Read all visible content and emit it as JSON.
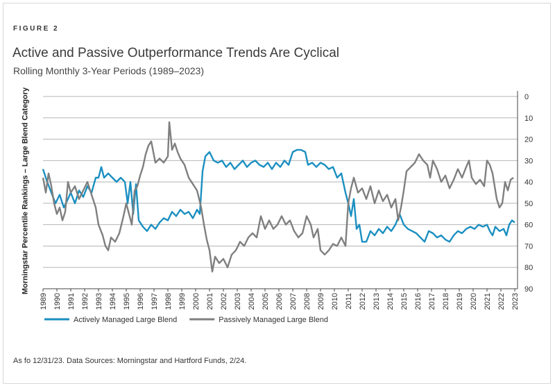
{
  "figure_label": "FIGURE 2",
  "footnote": "As fo 12/31/23. Data Sources: Morningstar and Hartford Funds, 2/24.",
  "credit": "",
  "colors": {
    "active": "#1a8fc0",
    "passive": "#7f7f7f",
    "grid": "#b5b5b5"
  },
  "chart_data": {
    "type": "line",
    "title": "Active and Passive Outperformance Trends Are Cyclical",
    "subtitle": "Rolling Monthly 3-Year Periods (1989–2023)",
    "ylabel": "Morningstar Percentile Rankings – Large Blend Category",
    "xlabel": "",
    "ylim": [
      0,
      90
    ],
    "y_inverted": true,
    "y_axis_side": "right",
    "y_ticks": [
      0,
      10,
      20,
      30,
      40,
      50,
      60,
      70,
      80,
      90
    ],
    "x_ticks": [
      "1989",
      "1990",
      "1991",
      "1992",
      "1993",
      "1994",
      "1995",
      "1996",
      "1997",
      "1998",
      "1999",
      "2000",
      "2001",
      "2002",
      "2003",
      "2004",
      "2005",
      "2006",
      "2007",
      "2008",
      "2009",
      "2010",
      "2011",
      "2012",
      "2013",
      "2014",
      "2015",
      "2016",
      "2017",
      "2018",
      "2019",
      "2020",
      "2021",
      "2022",
      "2023"
    ],
    "grid": "horizontal",
    "legend_position": "bottom-left",
    "series": [
      {
        "name": "Actively Managed Large Blend",
        "color": "active",
        "points": [
          [
            1989.0,
            34
          ],
          [
            1989.3,
            40
          ],
          [
            1989.6,
            45
          ],
          [
            1989.9,
            50
          ],
          [
            1990.2,
            46
          ],
          [
            1990.5,
            52
          ],
          [
            1990.8,
            48
          ],
          [
            1991.0,
            45
          ],
          [
            1991.3,
            50
          ],
          [
            1991.6,
            44
          ],
          [
            1991.9,
            47
          ],
          [
            1992.2,
            42
          ],
          [
            1992.5,
            45
          ],
          [
            1992.8,
            38
          ],
          [
            1993.0,
            38
          ],
          [
            1993.2,
            33
          ],
          [
            1993.4,
            38
          ],
          [
            1993.7,
            36
          ],
          [
            1994.0,
            38
          ],
          [
            1994.3,
            40
          ],
          [
            1994.6,
            38
          ],
          [
            1994.9,
            40
          ],
          [
            1995.1,
            50
          ],
          [
            1995.3,
            40
          ],
          [
            1995.5,
            55
          ],
          [
            1995.7,
            41
          ],
          [
            1995.9,
            58
          ],
          [
            1996.2,
            61
          ],
          [
            1996.5,
            63
          ],
          [
            1996.8,
            60
          ],
          [
            1997.1,
            62
          ],
          [
            1997.4,
            59
          ],
          [
            1997.7,
            57
          ],
          [
            1998.0,
            58
          ],
          [
            1998.3,
            54
          ],
          [
            1998.6,
            56
          ],
          [
            1998.9,
            53
          ],
          [
            1999.2,
            55
          ],
          [
            1999.5,
            54
          ],
          [
            1999.8,
            57
          ],
          [
            2000.1,
            53
          ],
          [
            2000.3,
            55
          ],
          [
            2000.5,
            35
          ],
          [
            2000.7,
            28
          ],
          [
            2001.0,
            26
          ],
          [
            2001.3,
            30
          ],
          [
            2001.6,
            31
          ],
          [
            2001.9,
            30
          ],
          [
            2002.2,
            33
          ],
          [
            2002.5,
            31
          ],
          [
            2002.8,
            34
          ],
          [
            2003.1,
            32
          ],
          [
            2003.4,
            30
          ],
          [
            2003.7,
            33
          ],
          [
            2004.0,
            31
          ],
          [
            2004.3,
            30
          ],
          [
            2004.6,
            32
          ],
          [
            2004.9,
            33
          ],
          [
            2005.2,
            31
          ],
          [
            2005.5,
            34
          ],
          [
            2005.8,
            31
          ],
          [
            2006.1,
            33
          ],
          [
            2006.4,
            30
          ],
          [
            2006.7,
            32
          ],
          [
            2007.0,
            26
          ],
          [
            2007.3,
            25
          ],
          [
            2007.6,
            25
          ],
          [
            2007.9,
            26
          ],
          [
            2008.1,
            32
          ],
          [
            2008.4,
            31
          ],
          [
            2008.7,
            33
          ],
          [
            2009.0,
            31
          ],
          [
            2009.3,
            32
          ],
          [
            2009.6,
            34
          ],
          [
            2009.9,
            33
          ],
          [
            2010.2,
            38
          ],
          [
            2010.5,
            36
          ],
          [
            2010.8,
            45
          ],
          [
            2011.0,
            50
          ],
          [
            2011.2,
            56
          ],
          [
            2011.4,
            48
          ],
          [
            2011.6,
            62
          ],
          [
            2011.8,
            60
          ],
          [
            2012.0,
            68
          ],
          [
            2012.3,
            68
          ],
          [
            2012.6,
            63
          ],
          [
            2012.9,
            65
          ],
          [
            2013.2,
            62
          ],
          [
            2013.5,
            64
          ],
          [
            2013.8,
            61
          ],
          [
            2014.1,
            63
          ],
          [
            2014.4,
            60
          ],
          [
            2014.7,
            55
          ],
          [
            2015.0,
            60
          ],
          [
            2015.3,
            62
          ],
          [
            2015.6,
            63
          ],
          [
            2015.9,
            64
          ],
          [
            2016.2,
            66
          ],
          [
            2016.5,
            68
          ],
          [
            2016.8,
            63
          ],
          [
            2017.1,
            64
          ],
          [
            2017.4,
            66
          ],
          [
            2017.7,
            65
          ],
          [
            2018.0,
            67
          ],
          [
            2018.3,
            68
          ],
          [
            2018.6,
            65
          ],
          [
            2018.9,
            63
          ],
          [
            2019.2,
            64
          ],
          [
            2019.5,
            62
          ],
          [
            2019.8,
            61
          ],
          [
            2020.1,
            62
          ],
          [
            2020.4,
            60
          ],
          [
            2020.7,
            61
          ],
          [
            2021.0,
            60
          ],
          [
            2021.2,
            63
          ],
          [
            2021.4,
            65
          ],
          [
            2021.6,
            61
          ],
          [
            2021.9,
            63
          ],
          [
            2022.2,
            62
          ],
          [
            2022.4,
            65
          ],
          [
            2022.6,
            60
          ],
          [
            2022.8,
            58
          ],
          [
            2023.0,
            59
          ]
        ]
      },
      {
        "name": "Passively Managed Large Blend",
        "color": "passive",
        "points": [
          [
            1989.0,
            38
          ],
          [
            1989.2,
            45
          ],
          [
            1989.4,
            36
          ],
          [
            1989.6,
            42
          ],
          [
            1989.8,
            50
          ],
          [
            1990.0,
            55
          ],
          [
            1990.2,
            52
          ],
          [
            1990.4,
            58
          ],
          [
            1990.6,
            54
          ],
          [
            1990.8,
            40
          ],
          [
            1991.0,
            45
          ],
          [
            1991.3,
            42
          ],
          [
            1991.6,
            48
          ],
          [
            1991.9,
            44
          ],
          [
            1992.2,
            40
          ],
          [
            1992.5,
            46
          ],
          [
            1992.8,
            52
          ],
          [
            1993.0,
            60
          ],
          [
            1993.3,
            65
          ],
          [
            1993.5,
            70
          ],
          [
            1993.7,
            72
          ],
          [
            1993.9,
            66
          ],
          [
            1994.2,
            68
          ],
          [
            1994.5,
            64
          ],
          [
            1994.8,
            56
          ],
          [
            1995.0,
            50
          ],
          [
            1995.2,
            55
          ],
          [
            1995.4,
            60
          ],
          [
            1995.6,
            44
          ],
          [
            1995.8,
            42
          ],
          [
            1996.0,
            37
          ],
          [
            1996.2,
            33
          ],
          [
            1996.4,
            27
          ],
          [
            1996.6,
            23
          ],
          [
            1996.8,
            21
          ],
          [
            1997.1,
            31
          ],
          [
            1997.4,
            29
          ],
          [
            1997.7,
            31
          ],
          [
            1998.0,
            28
          ],
          [
            1998.1,
            12
          ],
          [
            1998.3,
            25
          ],
          [
            1998.5,
            22
          ],
          [
            1998.7,
            26
          ],
          [
            1998.9,
            29
          ],
          [
            1999.2,
            32
          ],
          [
            1999.5,
            38
          ],
          [
            1999.8,
            41
          ],
          [
            2000.1,
            44
          ],
          [
            2000.4,
            52
          ],
          [
            2000.6,
            60
          ],
          [
            2000.8,
            67
          ],
          [
            2001.0,
            72
          ],
          [
            2001.2,
            82
          ],
          [
            2001.4,
            75
          ],
          [
            2001.7,
            78
          ],
          [
            2002.0,
            76
          ],
          [
            2002.3,
            80
          ],
          [
            2002.6,
            74
          ],
          [
            2002.9,
            72
          ],
          [
            2003.2,
            68
          ],
          [
            2003.5,
            70
          ],
          [
            2003.8,
            66
          ],
          [
            2004.1,
            64
          ],
          [
            2004.4,
            66
          ],
          [
            2004.7,
            56
          ],
          [
            2005.0,
            62
          ],
          [
            2005.3,
            58
          ],
          [
            2005.6,
            62
          ],
          [
            2005.9,
            60
          ],
          [
            2006.2,
            56
          ],
          [
            2006.5,
            60
          ],
          [
            2006.8,
            58
          ],
          [
            2007.1,
            63
          ],
          [
            2007.4,
            66
          ],
          [
            2007.7,
            64
          ],
          [
            2008.0,
            56
          ],
          [
            2008.3,
            60
          ],
          [
            2008.5,
            66
          ],
          [
            2008.8,
            62
          ],
          [
            2009.0,
            72
          ],
          [
            2009.3,
            74
          ],
          [
            2009.6,
            72
          ],
          [
            2009.9,
            69
          ],
          [
            2010.2,
            70
          ],
          [
            2010.5,
            66
          ],
          [
            2010.8,
            70
          ],
          [
            2011.0,
            50
          ],
          [
            2011.2,
            43
          ],
          [
            2011.4,
            38
          ],
          [
            2011.7,
            45
          ],
          [
            2012.0,
            43
          ],
          [
            2012.3,
            48
          ],
          [
            2012.6,
            42
          ],
          [
            2012.9,
            50
          ],
          [
            2013.2,
            44
          ],
          [
            2013.5,
            49
          ],
          [
            2013.8,
            46
          ],
          [
            2014.1,
            52
          ],
          [
            2014.4,
            48
          ],
          [
            2014.6,
            58
          ],
          [
            2014.8,
            52
          ],
          [
            2015.0,
            44
          ],
          [
            2015.2,
            35
          ],
          [
            2015.5,
            33
          ],
          [
            2015.8,
            31
          ],
          [
            2016.1,
            27
          ],
          [
            2016.4,
            30
          ],
          [
            2016.7,
            32
          ],
          [
            2016.9,
            38
          ],
          [
            2017.1,
            30
          ],
          [
            2017.4,
            34
          ],
          [
            2017.7,
            40
          ],
          [
            2018.0,
            37
          ],
          [
            2018.3,
            43
          ],
          [
            2018.6,
            39
          ],
          [
            2018.9,
            34
          ],
          [
            2019.2,
            38
          ],
          [
            2019.5,
            33
          ],
          [
            2019.7,
            30
          ],
          [
            2019.9,
            38
          ],
          [
            2020.2,
            41
          ],
          [
            2020.5,
            39
          ],
          [
            2020.8,
            42
          ],
          [
            2021.0,
            30
          ],
          [
            2021.2,
            32
          ],
          [
            2021.4,
            36
          ],
          [
            2021.7,
            48
          ],
          [
            2021.9,
            52
          ],
          [
            2022.1,
            50
          ],
          [
            2022.3,
            40
          ],
          [
            2022.5,
            44
          ],
          [
            2022.7,
            39
          ],
          [
            2022.9,
            38
          ]
        ]
      }
    ]
  }
}
